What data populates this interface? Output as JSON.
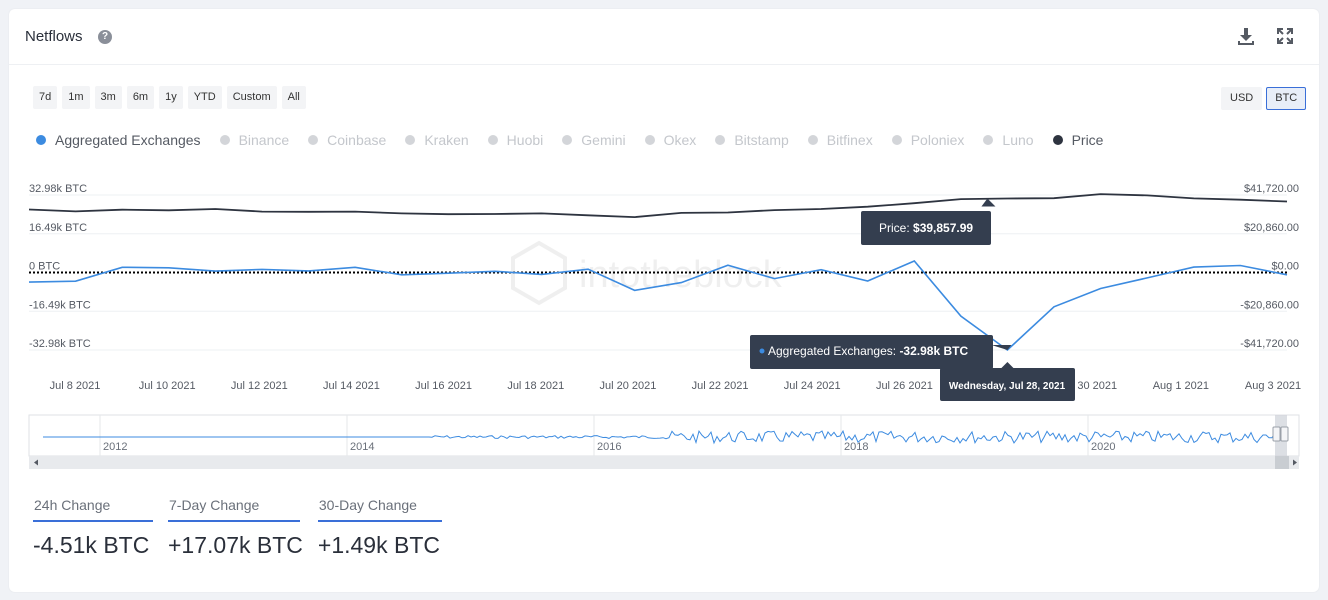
{
  "header": {
    "title": "Netflows",
    "help_glyph": "?",
    "download_icon": "download-icon",
    "expand_icon": "expand-icon"
  },
  "range_buttons": [
    "7d",
    "1m",
    "3m",
    "6m",
    "1y",
    "YTD",
    "Custom",
    "All"
  ],
  "currency_buttons": [
    {
      "label": "USD",
      "active": false
    },
    {
      "label": "BTC",
      "active": true
    }
  ],
  "legend": [
    {
      "label": "Aggregated Exchanges",
      "active": true,
      "color": "#3c8be0"
    },
    {
      "label": "Binance",
      "active": false
    },
    {
      "label": "Coinbase",
      "active": false
    },
    {
      "label": "Kraken",
      "active": false
    },
    {
      "label": "Huobi",
      "active": false
    },
    {
      "label": "Gemini",
      "active": false
    },
    {
      "label": "Okex",
      "active": false
    },
    {
      "label": "Bitstamp",
      "active": false
    },
    {
      "label": "Bitfinex",
      "active": false
    },
    {
      "label": "Poloniex",
      "active": false
    },
    {
      "label": "Luno",
      "active": false
    },
    {
      "label": "Price",
      "active": true,
      "color": "#2e3440"
    }
  ],
  "chart_data": {
    "type": "line",
    "watermark": "intotheblock",
    "x_ticks": [
      "Jul 8 2021",
      "Jul 10 2021",
      "Jul 12 2021",
      "Jul 14 2021",
      "Jul 16 2021",
      "Jul 18 2021",
      "Jul 20 2021",
      "Jul 22 2021",
      "Jul 24 2021",
      "Jul 26 2021",
      "Jul 28 2021",
      "Jul 30 2021",
      "Aug 1 2021",
      "Aug 3 2021"
    ],
    "y_left_ticks": [
      "32.98k BTC",
      "16.49k BTC",
      "0 BTC",
      "-16.49k BTC",
      "-32.98k BTC"
    ],
    "y_right_ticks": [
      "$41,720.00",
      "$20,860.00",
      "$0.00",
      "-$20,860.00",
      "-$41,720.00"
    ],
    "y_left_range": [
      -32980,
      32980
    ],
    "y_right_range": [
      -41720,
      41720
    ],
    "series": [
      {
        "name": "Aggregated Exchanges",
        "axis": "left",
        "color": "#3c8be0",
        "points": [
          {
            "x": "2021-07-07",
            "y": -4100
          },
          {
            "x": "2021-07-08",
            "y": -3700
          },
          {
            "x": "2021-07-09",
            "y": 2200
          },
          {
            "x": "2021-07-10",
            "y": 2000
          },
          {
            "x": "2021-07-11",
            "y": 600
          },
          {
            "x": "2021-07-12",
            "y": 1300
          },
          {
            "x": "2021-07-13",
            "y": 700
          },
          {
            "x": "2021-07-14",
            "y": 2200
          },
          {
            "x": "2021-07-15",
            "y": -1000
          },
          {
            "x": "2021-07-16",
            "y": -300
          },
          {
            "x": "2021-07-17",
            "y": 500
          },
          {
            "x": "2021-07-18",
            "y": -800
          },
          {
            "x": "2021-07-19",
            "y": 1400
          },
          {
            "x": "2021-07-20",
            "y": -7600
          },
          {
            "x": "2021-07-21",
            "y": -4300
          },
          {
            "x": "2021-07-22",
            "y": 3100
          },
          {
            "x": "2021-07-23",
            "y": -2600
          },
          {
            "x": "2021-07-24",
            "y": 1200
          },
          {
            "x": "2021-07-25",
            "y": -3600
          },
          {
            "x": "2021-07-26",
            "y": 4900
          },
          {
            "x": "2021-07-27",
            "y": -18600
          },
          {
            "x": "2021-07-28",
            "y": -32980
          },
          {
            "x": "2021-07-29",
            "y": -14600
          },
          {
            "x": "2021-07-30",
            "y": -6800
          },
          {
            "x": "2021-07-31",
            "y": -2300
          },
          {
            "x": "2021-08-01",
            "y": 2300
          },
          {
            "x": "2021-08-02",
            "y": 3000
          },
          {
            "x": "2021-08-03",
            "y": -1000
          }
        ]
      },
      {
        "name": "Price",
        "axis": "right",
        "color": "#2e3440",
        "points": [
          {
            "x": "2021-07-07",
            "y": 33900
          },
          {
            "x": "2021-07-08",
            "y": 32900
          },
          {
            "x": "2021-07-09",
            "y": 33800
          },
          {
            "x": "2021-07-10",
            "y": 33500
          },
          {
            "x": "2021-07-11",
            "y": 34200
          },
          {
            "x": "2021-07-12",
            "y": 32800
          },
          {
            "x": "2021-07-13",
            "y": 32700
          },
          {
            "x": "2021-07-14",
            "y": 32800
          },
          {
            "x": "2021-07-15",
            "y": 31800
          },
          {
            "x": "2021-07-16",
            "y": 31400
          },
          {
            "x": "2021-07-17",
            "y": 31500
          },
          {
            "x": "2021-07-18",
            "y": 31800
          },
          {
            "x": "2021-07-19",
            "y": 30800
          },
          {
            "x": "2021-07-20",
            "y": 29800
          },
          {
            "x": "2021-07-21",
            "y": 32100
          },
          {
            "x": "2021-07-22",
            "y": 32300
          },
          {
            "x": "2021-07-23",
            "y": 33600
          },
          {
            "x": "2021-07-24",
            "y": 34200
          },
          {
            "x": "2021-07-25",
            "y": 35400
          },
          {
            "x": "2021-07-26",
            "y": 37300
          },
          {
            "x": "2021-07-27",
            "y": 39500
          },
          {
            "x": "2021-07-28",
            "y": 39858
          },
          {
            "x": "2021-07-29",
            "y": 40000
          },
          {
            "x": "2021-07-30",
            "y": 42200
          },
          {
            "x": "2021-07-31",
            "y": 41500
          },
          {
            "x": "2021-08-01",
            "y": 39900
          },
          {
            "x": "2021-08-02",
            "y": 39200
          },
          {
            "x": "2021-08-03",
            "y": 38200
          }
        ]
      }
    ],
    "tooltip": {
      "price_prefix": "Price: ",
      "price_value": "$39,857.99",
      "series_prefix": "Aggregated Exchanges: ",
      "series_value": "-32.98k BTC",
      "date": "Wednesday, Jul 28, 2021"
    },
    "navigator_ticks": [
      "2012",
      "2014",
      "2016",
      "2018",
      "2020"
    ]
  },
  "changes": [
    {
      "label": "24h Change",
      "value": "-4.51k BTC"
    },
    {
      "label": "7-Day Change",
      "value": "+17.07k BTC"
    },
    {
      "label": "30-Day Change",
      "value": "+1.49k BTC"
    }
  ]
}
